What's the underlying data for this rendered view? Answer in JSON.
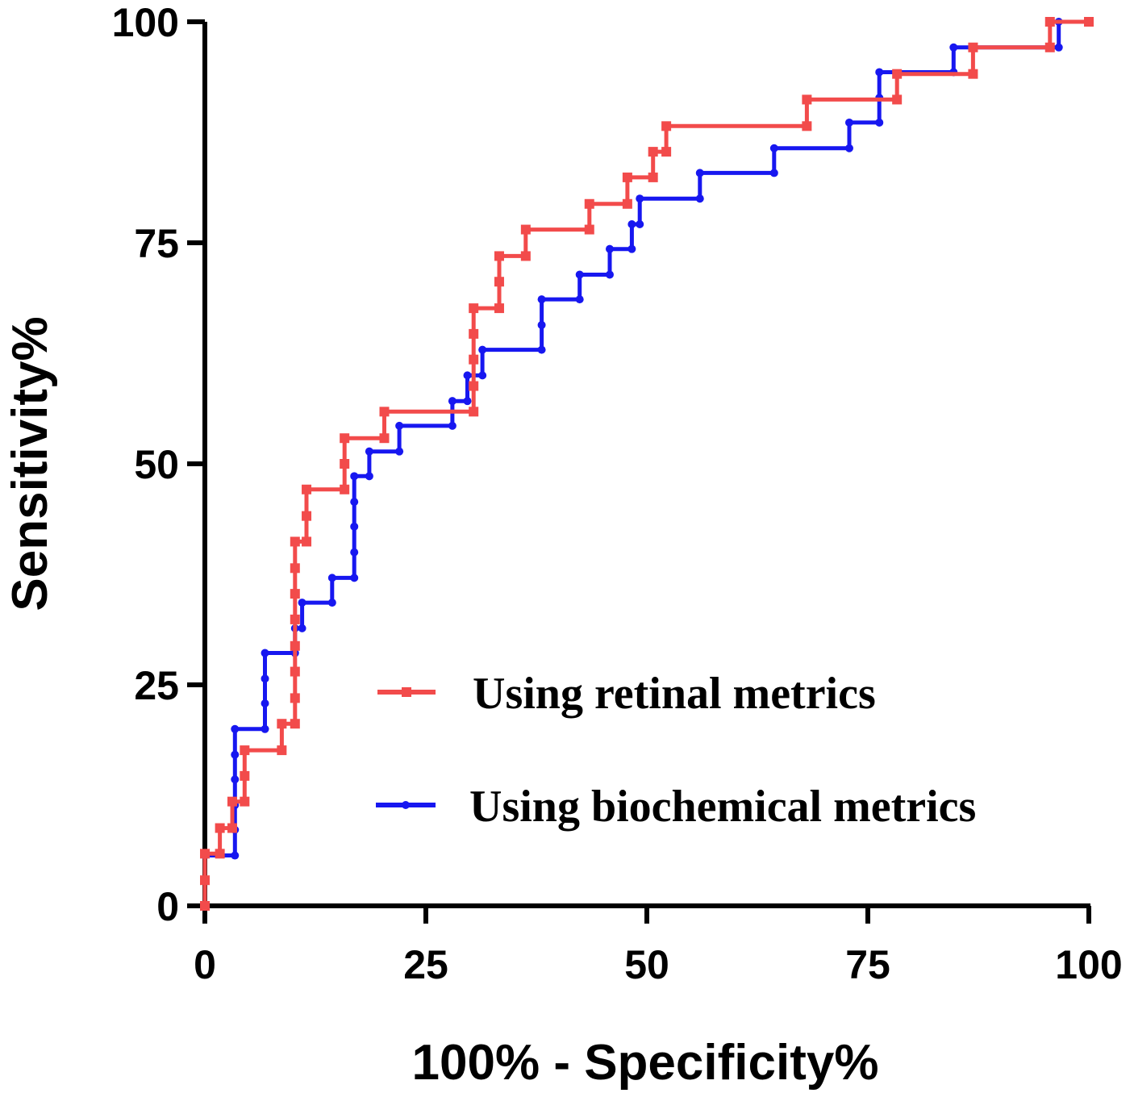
{
  "chart_data": {
    "type": "line",
    "title": "",
    "xlabel": "100% - Specificity%",
    "ylabel": "Sensitivity%",
    "xlim": [
      0,
      100
    ],
    "ylim": [
      0,
      100
    ],
    "x_ticks": [
      "0",
      "25",
      "50",
      "75",
      "100"
    ],
    "y_ticks": [
      "0",
      "25",
      "50",
      "75",
      "100"
    ],
    "grid": false,
    "legend_position": "bottom-right",
    "series": [
      {
        "name": "Using retinal metrics",
        "color": "#f24b4b",
        "marker": "square",
        "points": [
          [
            0,
            0
          ],
          [
            0,
            2.9
          ],
          [
            0,
            5.9
          ],
          [
            1.7,
            5.9
          ],
          [
            1.7,
            8.8
          ],
          [
            3.1,
            8.8
          ],
          [
            3.1,
            11.8
          ],
          [
            4.5,
            11.8
          ],
          [
            4.5,
            14.7
          ],
          [
            4.5,
            17.6
          ],
          [
            8.7,
            17.6
          ],
          [
            8.7,
            20.6
          ],
          [
            10.2,
            20.6
          ],
          [
            10.2,
            23.5
          ],
          [
            10.2,
            26.5
          ],
          [
            10.2,
            29.4
          ],
          [
            10.2,
            32.4
          ],
          [
            10.2,
            35.3
          ],
          [
            10.2,
            38.2
          ],
          [
            10.2,
            41.2
          ],
          [
            11.5,
            41.2
          ],
          [
            11.5,
            44.1
          ],
          [
            11.5,
            47.1
          ],
          [
            15.8,
            47.1
          ],
          [
            15.8,
            50
          ],
          [
            15.8,
            52.9
          ],
          [
            20.3,
            52.9
          ],
          [
            20.3,
            55.9
          ],
          [
            30.4,
            55.9
          ],
          [
            30.4,
            58.8
          ],
          [
            30.4,
            61.8
          ],
          [
            30.4,
            64.7
          ],
          [
            30.4,
            67.6
          ],
          [
            33.3,
            67.6
          ],
          [
            33.3,
            70.6
          ],
          [
            33.3,
            73.5
          ],
          [
            36.3,
            73.5
          ],
          [
            36.3,
            76.5
          ],
          [
            43.5,
            76.5
          ],
          [
            43.5,
            79.4
          ],
          [
            47.8,
            79.4
          ],
          [
            47.8,
            82.4
          ],
          [
            50.7,
            82.4
          ],
          [
            50.7,
            85.3
          ],
          [
            52.2,
            85.3
          ],
          [
            52.2,
            88.2
          ],
          [
            68.1,
            88.2
          ],
          [
            68.1,
            91.2
          ],
          [
            78.3,
            91.2
          ],
          [
            78.3,
            94.1
          ],
          [
            86.9,
            94.1
          ],
          [
            86.9,
            97.1
          ],
          [
            95.6,
            97.1
          ],
          [
            95.6,
            100
          ],
          [
            100,
            100
          ]
        ]
      },
      {
        "name": "Using biochemical metrics",
        "color": "#1717f0",
        "marker": "circle",
        "points": [
          [
            0,
            0
          ],
          [
            0,
            5.7
          ],
          [
            3.4,
            5.7
          ],
          [
            3.4,
            8.6
          ],
          [
            3.4,
            11.4
          ],
          [
            3.4,
            14.3
          ],
          [
            3.4,
            17.1
          ],
          [
            3.4,
            20
          ],
          [
            6.8,
            20
          ],
          [
            6.8,
            22.9
          ],
          [
            6.8,
            25.7
          ],
          [
            6.8,
            28.6
          ],
          [
            10.2,
            28.6
          ],
          [
            10.2,
            31.4
          ],
          [
            11.0,
            31.4
          ],
          [
            11.0,
            34.3
          ],
          [
            14.4,
            34.3
          ],
          [
            14.4,
            37.1
          ],
          [
            16.9,
            37.1
          ],
          [
            16.9,
            40
          ],
          [
            16.9,
            42.9
          ],
          [
            16.9,
            45.7
          ],
          [
            16.9,
            48.6
          ],
          [
            18.6,
            48.6
          ],
          [
            18.6,
            51.4
          ],
          [
            22.0,
            51.4
          ],
          [
            22.0,
            54.3
          ],
          [
            28.0,
            54.3
          ],
          [
            28.0,
            57.1
          ],
          [
            29.7,
            57.1
          ],
          [
            29.7,
            60
          ],
          [
            31.4,
            60
          ],
          [
            31.4,
            62.9
          ],
          [
            38.1,
            62.9
          ],
          [
            38.1,
            65.7
          ],
          [
            38.1,
            68.6
          ],
          [
            42.4,
            68.6
          ],
          [
            42.4,
            71.4
          ],
          [
            45.8,
            71.4
          ],
          [
            45.8,
            74.3
          ],
          [
            48.3,
            74.3
          ],
          [
            48.3,
            77.1
          ],
          [
            49.2,
            77.1
          ],
          [
            49.2,
            80
          ],
          [
            56.0,
            80
          ],
          [
            56.0,
            82.9
          ],
          [
            64.4,
            82.9
          ],
          [
            64.4,
            85.7
          ],
          [
            72.9,
            85.7
          ],
          [
            72.9,
            88.6
          ],
          [
            76.3,
            88.6
          ],
          [
            76.3,
            91.4
          ],
          [
            76.3,
            94.3
          ],
          [
            84.7,
            94.3
          ],
          [
            84.7,
            97.1
          ],
          [
            96.6,
            97.1
          ],
          [
            96.6,
            100
          ]
        ]
      }
    ]
  }
}
